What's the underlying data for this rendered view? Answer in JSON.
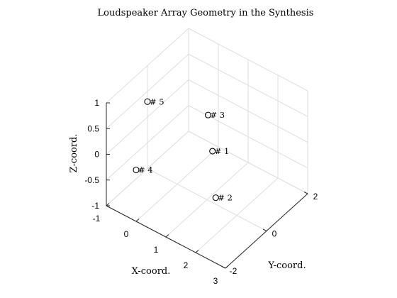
{
  "chart_data": {
    "type": "scatter3d",
    "title": "Loudspeaker Array Geometry in the Synthesis",
    "xlabel": "X-coord.",
    "ylabel": "Y-coord.",
    "zlabel": "Z-coord.",
    "xlim": [
      -1,
      3
    ],
    "ylim": [
      -2,
      2
    ],
    "zlim": [
      -1,
      1
    ],
    "xticks": [
      "-1",
      "0",
      "1",
      "2",
      "3"
    ],
    "yticks": [
      "-2",
      "0",
      "2"
    ],
    "zticks": [
      "-1",
      "-0.5",
      "0",
      "0.5",
      "1"
    ],
    "grid": true,
    "marker": "circle",
    "points": [
      {
        "label": "# 1",
        "x": 0.7,
        "y": 0.7,
        "z": -0.4
      },
      {
        "label": "# 2",
        "x": 1.5,
        "y": -0.3,
        "z": -0.7
      },
      {
        "label": "# 3",
        "x": 0.0,
        "y": 1.5,
        "z": -0.2
      },
      {
        "label": "# 4",
        "x": 0.0,
        "y": -2.0,
        "z": 0.0
      },
      {
        "label": "# 5",
        "x": -1.0,
        "y": 0.0,
        "z": 0.3
      }
    ]
  }
}
